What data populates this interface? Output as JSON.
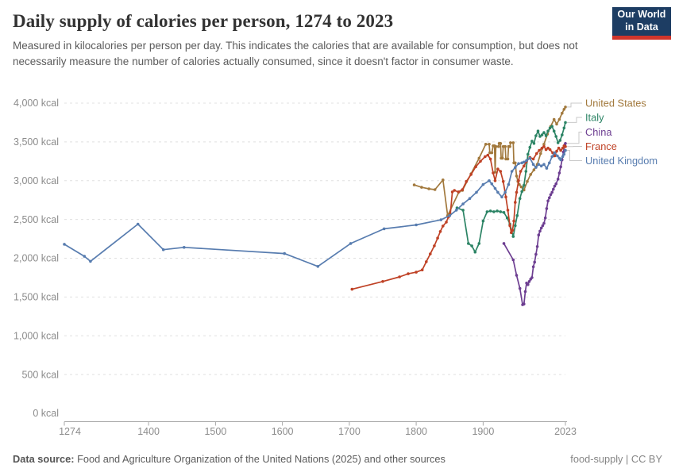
{
  "header": {
    "title": "Daily supply of calories per person, 1274 to 2023",
    "subtitle": "Measured in kilocalories per person per day. This indicates the calories that are available for consumption, but does not necessarily measure the number of calories actually consumed, since it doesn't factor in consumer waste.",
    "logo": {
      "line1": "Our World",
      "line2": "in Data",
      "bg_color": "#1D3D63",
      "accent_color": "#D0352B"
    }
  },
  "footer": {
    "source_label": "Data source:",
    "source_text": " Food and Agriculture Organization of the United Nations (2025) and other sources",
    "attribution": "food-supply | CC BY"
  },
  "chart_data": {
    "type": "line",
    "title": "Daily supply of calories per person, 1274 to 2023",
    "xlabel": "",
    "ylabel": "kcal",
    "xlim": [
      1274,
      2023
    ],
    "ylim": [
      0,
      4000
    ],
    "grid": "horizontal-dashed",
    "legend_position": "right",
    "x_ticks": [
      1274,
      1400,
      1500,
      1600,
      1700,
      1800,
      1900,
      2023
    ],
    "y_ticks": [
      0,
      500,
      1000,
      1500,
      2000,
      2500,
      3000,
      3500,
      4000
    ],
    "y_tick_labels": [
      "0 kcal",
      "500 kcal",
      "1,000 kcal",
      "1,500 kcal",
      "2,000 kcal",
      "2,500 kcal",
      "3,000 kcal",
      "3,500 kcal",
      "4,000 kcal"
    ],
    "axis_colors": {
      "grid": "#e0e0e0",
      "axis_line": "#a9a9a9",
      "tick_text": "#8c8c8c",
      "leader_line": "#c9c9c9"
    },
    "series": [
      {
        "name": "United States",
        "color": "#A2793D",
        "points": [
          [
            1797,
            2945
          ],
          [
            1808,
            2915
          ],
          [
            1819,
            2895
          ],
          [
            1828,
            2885
          ],
          [
            1840,
            3010
          ],
          [
            1847,
            2550
          ],
          [
            1864,
            2855
          ],
          [
            1869,
            2875
          ],
          [
            1882,
            3090
          ],
          [
            1894,
            3290
          ],
          [
            1904,
            3470
          ],
          [
            1909,
            3470
          ],
          [
            1910,
            3360
          ],
          [
            1913,
            3360
          ],
          [
            1915,
            3450
          ],
          [
            1917,
            3450
          ],
          [
            1918,
            3110
          ],
          [
            1919,
            3440
          ],
          [
            1923,
            3440
          ],
          [
            1924,
            3480
          ],
          [
            1926,
            3480
          ],
          [
            1927,
            3290
          ],
          [
            1929,
            3290
          ],
          [
            1930,
            3440
          ],
          [
            1933,
            3440
          ],
          [
            1934,
            3280
          ],
          [
            1937,
            3280
          ],
          [
            1938,
            3440
          ],
          [
            1940,
            3440
          ],
          [
            1941,
            3490
          ],
          [
            1945,
            3490
          ],
          [
            1946,
            3230
          ],
          [
            1948,
            3230
          ],
          [
            1950,
            3060
          ],
          [
            1952,
            2990
          ],
          [
            1954,
            2950
          ],
          [
            1957,
            2920
          ],
          [
            1961,
            2880
          ],
          [
            1966,
            2990
          ],
          [
            1971,
            3080
          ],
          [
            1976,
            3140
          ],
          [
            1981,
            3210
          ],
          [
            1986,
            3350
          ],
          [
            1991,
            3470
          ],
          [
            1996,
            3600
          ],
          [
            2001,
            3700
          ],
          [
            2006,
            3790
          ],
          [
            2010,
            3730
          ],
          [
            2014,
            3790
          ],
          [
            2018,
            3870
          ],
          [
            2021,
            3920
          ],
          [
            2023,
            3950
          ]
        ]
      },
      {
        "name": "Italy",
        "color": "#2C8465",
        "points": [
          [
            1861,
            2650
          ],
          [
            1870,
            2620
          ],
          [
            1878,
            2190
          ],
          [
            1883,
            2160
          ],
          [
            1888,
            2080
          ],
          [
            1894,
            2190
          ],
          [
            1900,
            2480
          ],
          [
            1906,
            2600
          ],
          [
            1911,
            2610
          ],
          [
            1916,
            2600
          ],
          [
            1921,
            2610
          ],
          [
            1926,
            2600
          ],
          [
            1931,
            2590
          ],
          [
            1936,
            2520
          ],
          [
            1940,
            2440
          ],
          [
            1945,
            2280
          ],
          [
            1948,
            2420
          ],
          [
            1951,
            2550
          ],
          [
            1955,
            2770
          ],
          [
            1958,
            2860
          ],
          [
            1961,
            2940
          ],
          [
            1964,
            3120
          ],
          [
            1967,
            3340
          ],
          [
            1970,
            3430
          ],
          [
            1973,
            3510
          ],
          [
            1976,
            3480
          ],
          [
            1979,
            3580
          ],
          [
            1982,
            3640
          ],
          [
            1985,
            3570
          ],
          [
            1988,
            3590
          ],
          [
            1991,
            3620
          ],
          [
            1994,
            3580
          ],
          [
            1997,
            3640
          ],
          [
            2000,
            3680
          ],
          [
            2003,
            3700
          ],
          [
            2006,
            3640
          ],
          [
            2009,
            3570
          ],
          [
            2012,
            3490
          ],
          [
            2015,
            3520
          ],
          [
            2018,
            3590
          ],
          [
            2021,
            3680
          ],
          [
            2023,
            3750
          ]
        ]
      },
      {
        "name": "China",
        "color": "#6D3E91",
        "points": [
          [
            1931,
            2190
          ],
          [
            1945,
            1980
          ],
          [
            1950,
            1780
          ],
          [
            1955,
            1610
          ],
          [
            1959,
            1400
          ],
          [
            1961,
            1410
          ],
          [
            1963,
            1570
          ],
          [
            1965,
            1680
          ],
          [
            1967,
            1660
          ],
          [
            1969,
            1700
          ],
          [
            1971,
            1730
          ],
          [
            1973,
            1750
          ],
          [
            1975,
            1890
          ],
          [
            1977,
            1950
          ],
          [
            1979,
            2050
          ],
          [
            1981,
            2150
          ],
          [
            1983,
            2300
          ],
          [
            1985,
            2350
          ],
          [
            1987,
            2390
          ],
          [
            1989,
            2420
          ],
          [
            1991,
            2450
          ],
          [
            1993,
            2520
          ],
          [
            1995,
            2640
          ],
          [
            1997,
            2740
          ],
          [
            1999,
            2780
          ],
          [
            2001,
            2820
          ],
          [
            2003,
            2850
          ],
          [
            2005,
            2890
          ],
          [
            2007,
            2930
          ],
          [
            2009,
            2960
          ],
          [
            2012,
            3020
          ],
          [
            2014,
            3100
          ],
          [
            2016,
            3180
          ],
          [
            2018,
            3270
          ],
          [
            2020,
            3370
          ],
          [
            2022,
            3460
          ],
          [
            2023,
            3480
          ]
        ]
      },
      {
        "name": "France",
        "color": "#BF4125",
        "points": [
          [
            1704,
            1600
          ],
          [
            1750,
            1700
          ],
          [
            1775,
            1760
          ],
          [
            1788,
            1800
          ],
          [
            1800,
            1820
          ],
          [
            1809,
            1850
          ],
          [
            1815,
            1955
          ],
          [
            1821,
            2055
          ],
          [
            1827,
            2160
          ],
          [
            1832,
            2260
          ],
          [
            1836,
            2345
          ],
          [
            1840,
            2415
          ],
          [
            1845,
            2465
          ],
          [
            1848,
            2530
          ],
          [
            1851,
            2570
          ],
          [
            1854,
            2855
          ],
          [
            1857,
            2875
          ],
          [
            1863,
            2855
          ],
          [
            1869,
            2885
          ],
          [
            1875,
            2990
          ],
          [
            1882,
            3080
          ],
          [
            1889,
            3180
          ],
          [
            1896,
            3250
          ],
          [
            1903,
            3310
          ],
          [
            1907,
            3330
          ],
          [
            1911,
            3280
          ],
          [
            1915,
            3100
          ],
          [
            1918,
            3000
          ],
          [
            1922,
            3150
          ],
          [
            1926,
            3120
          ],
          [
            1930,
            2990
          ],
          [
            1934,
            2790
          ],
          [
            1937,
            2620
          ],
          [
            1940,
            2420
          ],
          [
            1942,
            2330
          ],
          [
            1944,
            2360
          ],
          [
            1946,
            2480
          ],
          [
            1948,
            2720
          ],
          [
            1950,
            2850
          ],
          [
            1953,
            3000
          ],
          [
            1956,
            3120
          ],
          [
            1961,
            3190
          ],
          [
            1965,
            3250
          ],
          [
            1970,
            3300
          ],
          [
            1975,
            3280
          ],
          [
            1980,
            3350
          ],
          [
            1984,
            3390
          ],
          [
            1988,
            3420
          ],
          [
            1991,
            3440
          ],
          [
            1994,
            3400
          ],
          [
            1997,
            3420
          ],
          [
            2000,
            3400
          ],
          [
            2004,
            3360
          ],
          [
            2007,
            3320
          ],
          [
            2010,
            3380
          ],
          [
            2013,
            3420
          ],
          [
            2016,
            3390
          ],
          [
            2019,
            3420
          ],
          [
            2021,
            3450
          ],
          [
            2023,
            3440
          ]
        ]
      },
      {
        "name": "United Kingdom",
        "color": "#577CAF",
        "points": [
          [
            1274,
            2180
          ],
          [
            1304,
            2025
          ],
          [
            1313,
            1960
          ],
          [
            1384,
            2440
          ],
          [
            1422,
            2110
          ],
          [
            1453,
            2140
          ],
          [
            1603,
            2060
          ],
          [
            1653,
            1895
          ],
          [
            1702,
            2190
          ],
          [
            1752,
            2380
          ],
          [
            1800,
            2430
          ],
          [
            1837,
            2495
          ],
          [
            1850,
            2550
          ],
          [
            1860,
            2620
          ],
          [
            1870,
            2700
          ],
          [
            1880,
            2770
          ],
          [
            1890,
            2850
          ],
          [
            1900,
            2950
          ],
          [
            1909,
            3000
          ],
          [
            1913,
            2960
          ],
          [
            1918,
            2900
          ],
          [
            1922,
            2850
          ],
          [
            1928,
            2790
          ],
          [
            1933,
            2850
          ],
          [
            1938,
            2950
          ],
          [
            1943,
            3120
          ],
          [
            1948,
            3170
          ],
          [
            1953,
            3220
          ],
          [
            1958,
            3230
          ],
          [
            1961,
            3240
          ],
          [
            1965,
            3260
          ],
          [
            1970,
            3290
          ],
          [
            1975,
            3210
          ],
          [
            1979,
            3170
          ],
          [
            1983,
            3210
          ],
          [
            1987,
            3190
          ],
          [
            1991,
            3210
          ],
          [
            1995,
            3160
          ],
          [
            1999,
            3230
          ],
          [
            2003,
            3310
          ],
          [
            2007,
            3360
          ],
          [
            2011,
            3320
          ],
          [
            2014,
            3290
          ],
          [
            2016,
            3270
          ],
          [
            2019,
            3310
          ],
          [
            2021,
            3340
          ],
          [
            2023,
            3390
          ]
        ]
      }
    ]
  }
}
